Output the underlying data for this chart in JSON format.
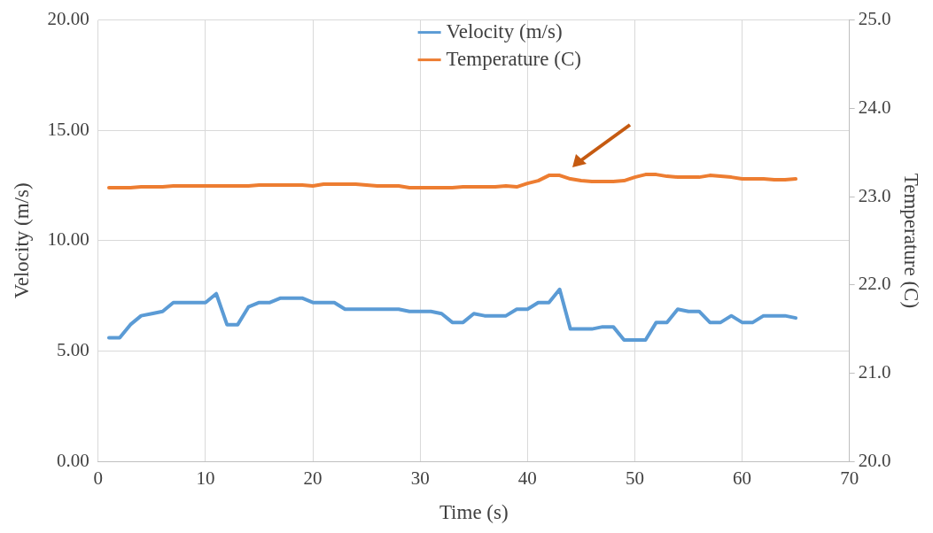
{
  "chart_data": {
    "type": "line",
    "xlabel": "Time (s)",
    "ylabel": "Velocity (m/s)",
    "y2label": "Temperature (C)",
    "x": [
      1,
      2,
      3,
      4,
      5,
      6,
      7,
      8,
      9,
      10,
      11,
      12,
      13,
      14,
      15,
      16,
      17,
      18,
      19,
      20,
      21,
      22,
      23,
      24,
      25,
      26,
      27,
      28,
      29,
      30,
      31,
      32,
      33,
      34,
      35,
      36,
      37,
      38,
      39,
      40,
      41,
      42,
      43,
      44,
      45,
      46,
      47,
      48,
      49,
      50,
      51,
      52,
      53,
      54,
      55,
      56,
      57,
      58,
      59,
      60,
      61,
      62,
      63,
      64,
      65
    ],
    "series": [
      {
        "name": "Velocity (m/s)",
        "color": "#5b9bd5",
        "values": [
          5.6,
          5.6,
          6.2,
          6.6,
          6.7,
          6.8,
          7.2,
          7.2,
          7.2,
          7.2,
          7.6,
          6.2,
          6.2,
          7.0,
          7.2,
          7.2,
          7.4,
          7.4,
          7.4,
          7.2,
          7.2,
          7.2,
          6.9,
          6.9,
          6.9,
          6.9,
          6.9,
          6.9,
          6.8,
          6.8,
          6.8,
          6.7,
          6.3,
          6.3,
          6.7,
          6.6,
          6.6,
          6.6,
          6.9,
          6.9,
          7.2,
          7.2,
          7.8,
          6.0,
          6.0,
          6.0,
          6.1,
          6.1,
          5.5,
          5.5,
          5.5,
          6.3,
          6.3,
          6.9,
          6.8,
          6.8,
          6.3,
          6.3,
          6.6,
          6.3,
          6.3,
          6.6,
          6.6,
          6.6,
          6.5
        ]
      },
      {
        "name": "Temperature (C)",
        "color": "#ed7d31",
        "axis": "y2",
        "values": [
          23.1,
          23.1,
          23.1,
          23.11,
          23.11,
          23.11,
          23.12,
          23.12,
          23.12,
          23.12,
          23.12,
          23.12,
          23.12,
          23.12,
          23.13,
          23.13,
          23.13,
          23.13,
          23.13,
          23.12,
          23.14,
          23.14,
          23.14,
          23.14,
          23.13,
          23.12,
          23.12,
          23.12,
          23.1,
          23.1,
          23.1,
          23.1,
          23.1,
          23.11,
          23.11,
          23.11,
          23.11,
          23.12,
          23.11,
          23.15,
          23.18,
          23.24,
          23.24,
          23.2,
          23.18,
          23.17,
          23.17,
          23.17,
          23.18,
          23.22,
          23.25,
          23.25,
          23.23,
          23.22,
          23.22,
          23.22,
          23.24,
          23.23,
          23.22,
          23.2,
          23.2,
          23.2,
          23.19,
          23.19,
          23.2
        ]
      }
    ],
    "xlim": [
      0,
      70
    ],
    "xticks": [
      0,
      10,
      20,
      30,
      40,
      50,
      60,
      70
    ],
    "ylim": [
      0,
      20
    ],
    "yticks": [
      {
        "value": 0,
        "label": "0.00"
      },
      {
        "value": 5,
        "label": "5.00"
      },
      {
        "value": 10,
        "label": "10.00"
      },
      {
        "value": 15,
        "label": "15.00"
      },
      {
        "value": 20,
        "label": "20.00"
      }
    ],
    "y2lim": [
      20,
      25
    ],
    "y2ticks": [
      {
        "value": 20,
        "label": "20.0"
      },
      {
        "value": 21,
        "label": "21.0"
      },
      {
        "value": 22,
        "label": "22.0"
      },
      {
        "value": 23,
        "label": "23.0"
      },
      {
        "value": 24,
        "label": "24.0"
      },
      {
        "value": 25,
        "label": "25.0"
      }
    ],
    "grid": true,
    "legend": "top",
    "marker": "none",
    "line_style": "solid"
  }
}
